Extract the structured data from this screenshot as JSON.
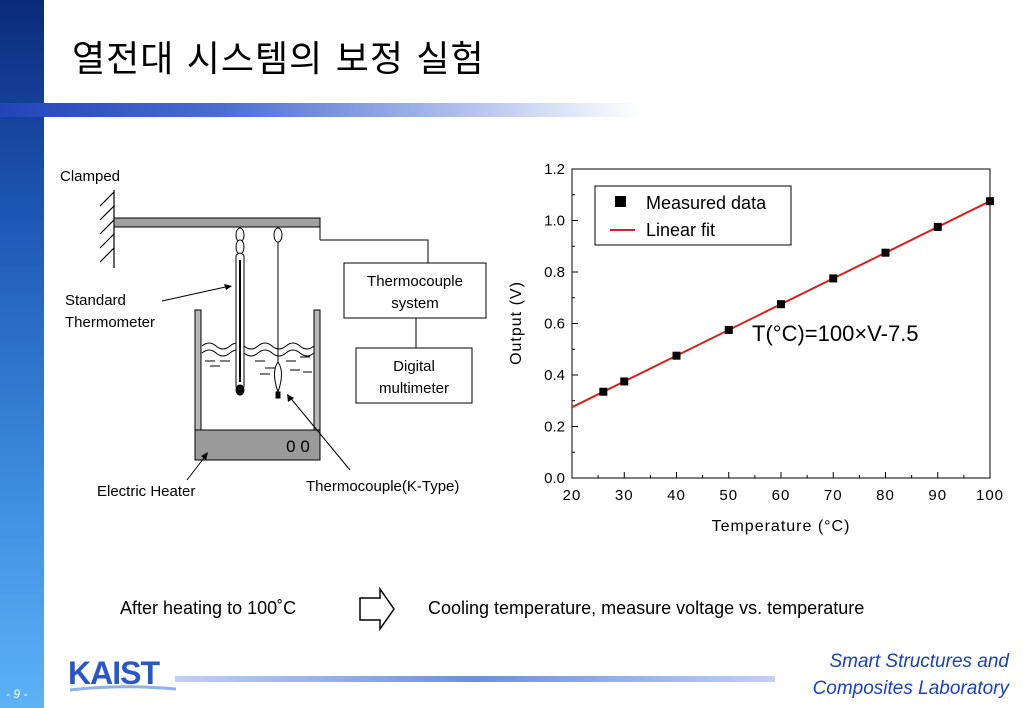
{
  "slide": {
    "title": "열전대 시스템의 보정 실험",
    "page_number": "- 9 -"
  },
  "diagram": {
    "clamped_label": "Clamped",
    "standard_label_line1": "Standard",
    "standard_label_line2": "Thermometer",
    "thermo_system_line1": "Thermocouple",
    "thermo_system_line2": "system",
    "digital_line1": "Digital",
    "digital_line2": "multimeter",
    "heater_label": "Electric Heater",
    "thermocouple_label": "Thermocouple(K-Type)",
    "heater_knobs": "0 0"
  },
  "process": {
    "after_heating": "After heating to 100˚C",
    "cooling": "Cooling temperature, measure voltage vs. temperature"
  },
  "footer": {
    "logo": "KAIST",
    "lab_line1": "Smart Structures and",
    "lab_line2": "Composites Laboratory"
  },
  "chart_data": {
    "type": "scatter",
    "xlabel": "Temperature (°C)",
    "ylabel": "Output (V)",
    "xlim": [
      20,
      100
    ],
    "ylim": [
      0.0,
      1.2
    ],
    "xticks": [
      "20",
      "30",
      "40",
      "50",
      "60",
      "70",
      "80",
      "90",
      "100"
    ],
    "yticks": [
      "0.0",
      "0.2",
      "0.4",
      "0.6",
      "0.8",
      "1.0",
      "1.2"
    ],
    "legend_position": "top-left",
    "annotation": "T(°C)=100×V-7.5",
    "series": [
      {
        "name": "Measured data",
        "type": "scatter",
        "color": "#000000",
        "x": [
          26,
          30,
          40,
          50,
          60,
          70,
          80,
          90,
          100
        ],
        "y": [
          0.335,
          0.375,
          0.475,
          0.575,
          0.675,
          0.775,
          0.875,
          0.975,
          1.075
        ]
      },
      {
        "name": "Linear fit",
        "type": "line",
        "color": "#d92020",
        "x": [
          20,
          100
        ],
        "y": [
          0.275,
          1.075
        ]
      }
    ]
  }
}
